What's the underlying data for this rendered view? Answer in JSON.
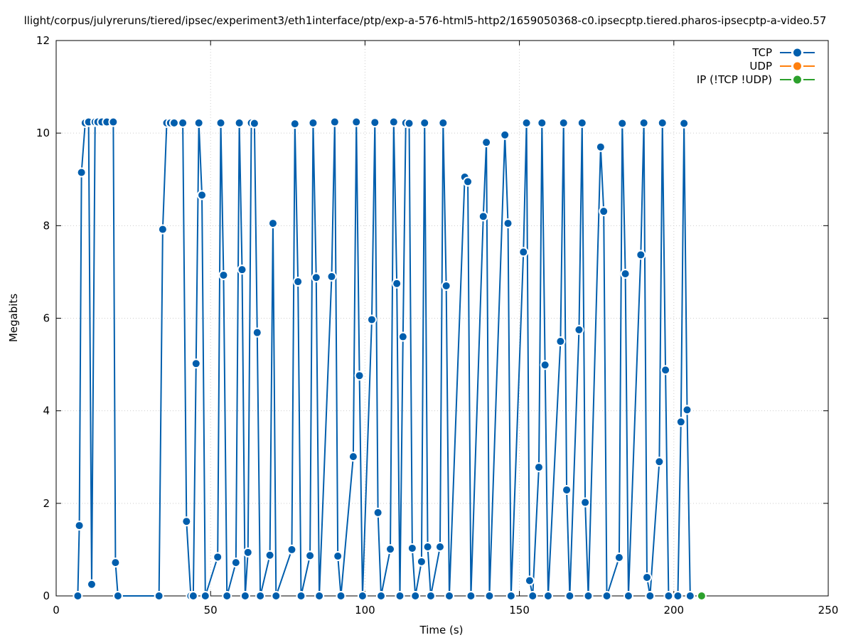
{
  "chart_data": {
    "type": "line",
    "title": "llight/corpus/julyreruns/tiered/ipsec/experiment3/eth1interface/ptp/exp-a-576-html5-http2/1659050368-c0.ipsecptp.tiered.pharos-ipsecptp-a-video.57",
    "xlabel": "Time (s)",
    "ylabel": "Megabits",
    "xlim": [
      0,
      250
    ],
    "ylim": [
      0,
      12
    ],
    "xticks": [
      0,
      50,
      100,
      150,
      200,
      250
    ],
    "yticks": [
      0,
      2,
      4,
      6,
      8,
      10,
      12
    ],
    "grid": true,
    "legend_position": "top-right",
    "series": [
      {
        "name": "TCP",
        "color": "#005ead",
        "points": [
          [
            7,
            0
          ],
          [
            7.5,
            1.52
          ],
          [
            8.2,
            9.15
          ],
          [
            9.4,
            10.22
          ],
          [
            10.5,
            10.24
          ],
          [
            11.5,
            0.25
          ],
          [
            12.6,
            10.24
          ],
          [
            13.5,
            10.24
          ],
          [
            14.8,
            10.24
          ],
          [
            16.4,
            10.24
          ],
          [
            18.5,
            10.24
          ],
          [
            19.2,
            0.72
          ],
          [
            20,
            0
          ],
          [
            33.3,
            0
          ],
          [
            34.5,
            7.92
          ],
          [
            35.8,
            10.22
          ],
          [
            37,
            10.22
          ],
          [
            38.2,
            10.22
          ],
          [
            41,
            10.22
          ],
          [
            42.2,
            1.61
          ],
          [
            43.6,
            0
          ],
          [
            44.4,
            0
          ],
          [
            45.3,
            5.02
          ],
          [
            46.2,
            10.22
          ],
          [
            47.2,
            8.66
          ],
          [
            48.3,
            0
          ],
          [
            52.3,
            0.84
          ],
          [
            53.3,
            10.22
          ],
          [
            54.2,
            6.93
          ],
          [
            55.3,
            0
          ],
          [
            58.2,
            0.72
          ],
          [
            59.3,
            10.22
          ],
          [
            60.2,
            7.05
          ],
          [
            61.2,
            0
          ],
          [
            62.1,
            0.94
          ],
          [
            63.2,
            10.22
          ],
          [
            64.2,
            10.21
          ],
          [
            65.1,
            5.69
          ],
          [
            66.1,
            0
          ],
          [
            69.2,
            0.88
          ],
          [
            70.2,
            8.05
          ],
          [
            71.2,
            0
          ],
          [
            76.3,
            1
          ],
          [
            77.3,
            10.2
          ],
          [
            78.3,
            6.79
          ],
          [
            79.3,
            0
          ],
          [
            82.2,
            0.87
          ],
          [
            83.2,
            10.22
          ],
          [
            84.2,
            6.88
          ],
          [
            85.2,
            0
          ],
          [
            89.2,
            6.9
          ],
          [
            90.2,
            10.24
          ],
          [
            91.2,
            0.86
          ],
          [
            92.2,
            0
          ],
          [
            96.2,
            3.01
          ],
          [
            97.2,
            10.24
          ],
          [
            98.2,
            4.76
          ],
          [
            99.2,
            0
          ],
          [
            102.2,
            5.97
          ],
          [
            103.2,
            10.23
          ],
          [
            104.2,
            1.8
          ],
          [
            105.2,
            0
          ],
          [
            108.2,
            1.01
          ],
          [
            109.3,
            10.24
          ],
          [
            110.3,
            6.75
          ],
          [
            111.3,
            0
          ],
          [
            112.3,
            5.6
          ],
          [
            113.2,
            10.22
          ],
          [
            114.3,
            10.21
          ],
          [
            115.3,
            1.03
          ],
          [
            116.3,
            0
          ],
          [
            118.3,
            0.74
          ],
          [
            119.3,
            10.22
          ],
          [
            120.3,
            1.06
          ],
          [
            121.3,
            0
          ],
          [
            124.3,
            1.06
          ],
          [
            125.3,
            10.22
          ],
          [
            126.3,
            6.7
          ],
          [
            127.3,
            0
          ],
          [
            132.3,
            9.05
          ],
          [
            133.3,
            8.95
          ],
          [
            134.3,
            0
          ],
          [
            138.3,
            8.2
          ],
          [
            139.3,
            9.8
          ],
          [
            140.3,
            0
          ],
          [
            145.3,
            9.96
          ],
          [
            146.3,
            8.05
          ],
          [
            147.3,
            0
          ],
          [
            151.3,
            7.43
          ],
          [
            152.3,
            10.22
          ],
          [
            153.3,
            0.33
          ],
          [
            154.3,
            0
          ],
          [
            156.3,
            2.78
          ],
          [
            157.3,
            10.22
          ],
          [
            158.3,
            4.99
          ],
          [
            159.3,
            0
          ],
          [
            163.3,
            5.5
          ],
          [
            164.3,
            10.22
          ],
          [
            165.3,
            2.29
          ],
          [
            166.3,
            0
          ],
          [
            169.3,
            5.75
          ],
          [
            170.3,
            10.22
          ],
          [
            171.3,
            2.02
          ],
          [
            172.3,
            0
          ],
          [
            176.3,
            9.7
          ],
          [
            177.3,
            8.31
          ],
          [
            178.3,
            0
          ],
          [
            182.3,
            0.83
          ],
          [
            183.3,
            10.21
          ],
          [
            184.3,
            6.96
          ],
          [
            185.3,
            0
          ],
          [
            189.3,
            7.37
          ],
          [
            190.3,
            10.22
          ],
          [
            191.3,
            0.4
          ],
          [
            192.3,
            0
          ],
          [
            195.3,
            2.9
          ],
          [
            196.3,
            10.22
          ],
          [
            197.3,
            4.88
          ],
          [
            198.3,
            0
          ],
          [
            201.3,
            0
          ],
          [
            202.3,
            3.76
          ],
          [
            203.3,
            10.21
          ],
          [
            204.3,
            4.02
          ],
          [
            205.3,
            0
          ]
        ]
      },
      {
        "name": "UDP",
        "color": "#ff800e",
        "points": []
      },
      {
        "name": "IP (!TCP  !UDP)",
        "color": "#2ca02c",
        "points": [
          [
            209,
            0
          ]
        ]
      }
    ]
  }
}
